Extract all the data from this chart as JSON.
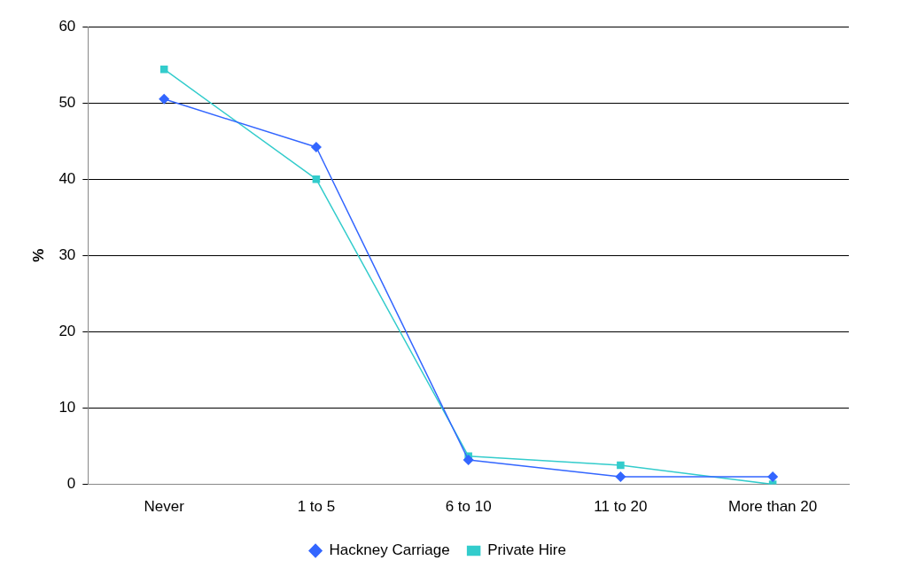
{
  "chart_data": {
    "type": "line",
    "ylabel": "%",
    "categories": [
      "Never",
      "1 to 5",
      "6 to 10",
      "11 to 20",
      "More than 20"
    ],
    "series": [
      {
        "name": "Hackney Carriage",
        "color": "#3366ff",
        "marker": "diamond",
        "values": [
          50.5,
          44.2,
          3.2,
          1.0,
          1.0
        ]
      },
      {
        "name": "Private Hire",
        "color": "#33cccc",
        "marker": "square",
        "values": [
          54.4,
          40.0,
          3.7,
          2.5,
          0.0
        ]
      }
    ],
    "ylim": [
      0,
      60
    ],
    "yticks": [
      0,
      10,
      20,
      30,
      40,
      50,
      60
    ],
    "grid": "y",
    "legend": "bottom",
    "line_style": "solid"
  }
}
